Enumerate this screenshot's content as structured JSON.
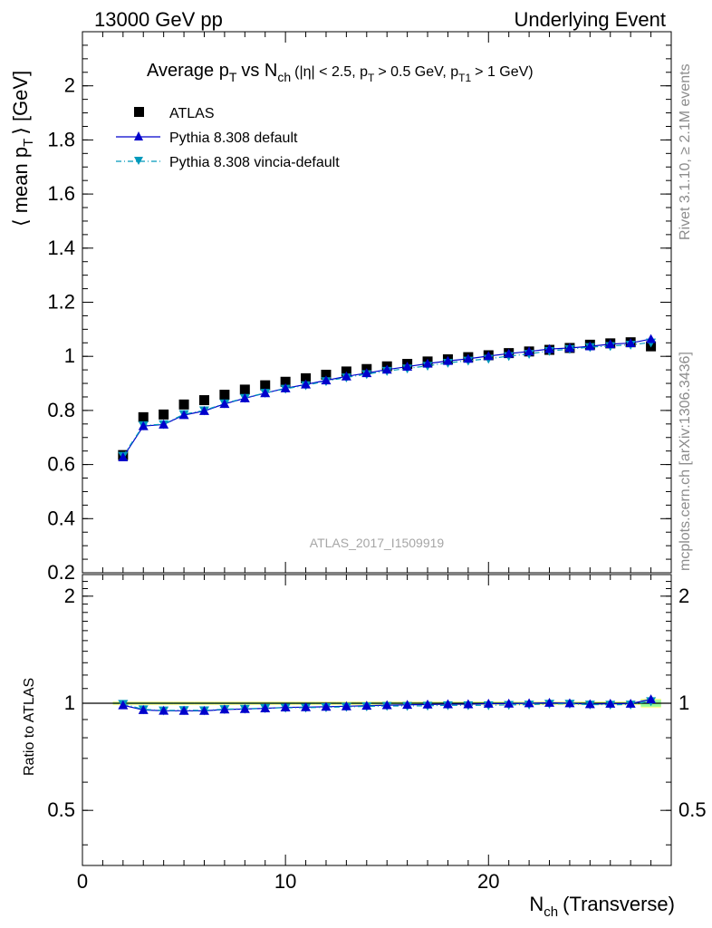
{
  "header": {
    "left": "13000 GeV pp",
    "right": "Underlying Event"
  },
  "title": {
    "main": "Average p",
    "sub_T": "T",
    "vs": "vs N",
    "sub_ch": "ch",
    "cuts_part1": "(|η| < 2.5, p",
    "cuts_sub1": "T",
    "cuts_part2": "> 0.5 GeV, p",
    "cuts_sub2": "T1",
    "cuts_part3": "> 1 GeV)"
  },
  "side_labels": {
    "rivet": "Rivet 3.1.10, ≥ 2.1M events",
    "mcplots": "mcplots.cern.ch [arXiv:1306.3436]"
  },
  "analysis_label": "ATLAS_2017_I1509919",
  "axes": {
    "ylabel_main_a": "⟨ mean p",
    "ylabel_main_sub": "T",
    "ylabel_main_b": "⟩ [GeV]",
    "ylabel_ratio": "Ratio to ATLAS",
    "xlabel_a": "N",
    "xlabel_sub": "ch",
    "xlabel_b": "(Transverse)"
  },
  "legend": {
    "atlas": "ATLAS",
    "default": "Pythia 8.308 default",
    "vincia": "Pythia 8.308 vincia-default"
  },
  "colors": {
    "atlas": "#000000",
    "default": "#0000cc",
    "vincia": "#0099bb",
    "band_outer": "#ffff99",
    "band_inner": "#99ff99"
  },
  "chart_data": {
    "type": "scatter",
    "x_range": [
      0,
      29
    ],
    "main": {
      "ylim": [
        0.2,
        2.2
      ],
      "yticks": [
        0.2,
        0.4,
        0.6,
        0.8,
        1,
        1.2,
        1.4,
        1.6,
        1.8,
        2
      ],
      "yticklabels": [
        "0.2",
        "0.4",
        "0.6",
        "0.8",
        "1",
        "1.2",
        "1.4",
        "1.6",
        "1.8",
        "2"
      ]
    },
    "ratio": {
      "ylim": [
        0.35,
        2.3
      ],
      "log": true,
      "yticks": [
        0.5,
        1,
        2
      ],
      "yticklabels": [
        "0.5",
        "1",
        "2"
      ]
    },
    "xticks": [
      0,
      10,
      20
    ],
    "xticklabels": [
      "0",
      "10",
      "20"
    ],
    "x": [
      2,
      3,
      4,
      5,
      6,
      7,
      8,
      9,
      10,
      11,
      12,
      13,
      14,
      15,
      16,
      17,
      18,
      19,
      20,
      21,
      22,
      23,
      24,
      25,
      26,
      27,
      28
    ],
    "series": [
      {
        "name": "ATLAS",
        "key": "atlas",
        "values": [
          0.635,
          0.775,
          0.785,
          0.822,
          0.838,
          0.858,
          0.877,
          0.893,
          0.906,
          0.919,
          0.932,
          0.944,
          0.953,
          0.963,
          0.972,
          0.981,
          0.989,
          0.997,
          1.004,
          1.012,
          1.018,
          1.024,
          1.031,
          1.043,
          1.048,
          1.052,
          1.037
        ]
      },
      {
        "name": "Pythia 8.308 default",
        "key": "default",
        "values": [
          0.627,
          0.742,
          0.748,
          0.783,
          0.798,
          0.824,
          0.845,
          0.864,
          0.882,
          0.896,
          0.911,
          0.926,
          0.938,
          0.951,
          0.962,
          0.973,
          0.983,
          0.991,
          1.001,
          1.01,
          1.018,
          1.027,
          1.031,
          1.037,
          1.045,
          1.049,
          1.064
        ]
      },
      {
        "name": "Pythia 8.308 vincia-default",
        "key": "vincia",
        "values": [
          0.632,
          0.745,
          0.749,
          0.786,
          0.8,
          0.826,
          0.846,
          0.865,
          0.88,
          0.893,
          0.908,
          0.922,
          0.934,
          0.946,
          0.955,
          0.965,
          0.976,
          0.984,
          0.991,
          1.001,
          1.009,
          1.02,
          1.027,
          1.034,
          1.038,
          1.043,
          1.051
        ]
      }
    ]
  }
}
